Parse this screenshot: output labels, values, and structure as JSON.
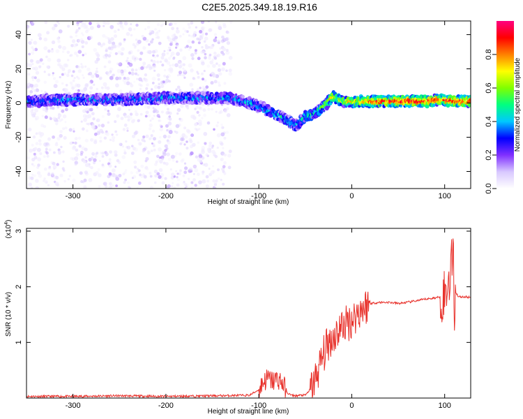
{
  "title": "C2E5.2025.349.18.19.R16",
  "chart_data": [
    {
      "type": "heatmap",
      "xlabel": "Height of straight line (km)",
      "ylabel": "Frequency (Hz)",
      "xlim": [
        -350,
        128
      ],
      "ylim": [
        -50,
        48
      ],
      "xticks": [
        -300,
        -200,
        -100,
        0,
        100
      ],
      "yticks": [
        -40,
        -20,
        0,
        20,
        40
      ],
      "grid": false,
      "colorbar": {
        "label": "Normalized spectral amplitude",
        "ticks": [
          "0.0",
          "0.2",
          "0.4",
          "0.6",
          "0.8"
        ],
        "tick_values": [
          0,
          0.2,
          0.4,
          0.6,
          0.8
        ],
        "range": [
          0,
          1
        ],
        "colormap": [
          "#ffffff",
          "#d8c8ff",
          "#8030ff",
          "#0000ff",
          "#00c8ff",
          "#00ff80",
          "#80ff00",
          "#ffff00",
          "#ff8000",
          "#ff0000",
          "#ff0080"
        ]
      },
      "ridge": [
        {
          "x": -350,
          "y": 1,
          "amp": 0.3
        },
        {
          "x": -300,
          "y": 2,
          "amp": 0.35
        },
        {
          "x": -250,
          "y": 2,
          "amp": 0.32
        },
        {
          "x": -200,
          "y": 3,
          "amp": 0.35
        },
        {
          "x": -160,
          "y": 3,
          "amp": 0.34
        },
        {
          "x": -130,
          "y": 3,
          "amp": 0.35
        },
        {
          "x": -110,
          "y": 0,
          "amp": 0.38
        },
        {
          "x": -95,
          "y": -3,
          "amp": 0.4
        },
        {
          "x": -80,
          "y": -7,
          "amp": 0.42
        },
        {
          "x": -70,
          "y": -10,
          "amp": 0.45
        },
        {
          "x": -60,
          "y": -13,
          "amp": 0.4
        },
        {
          "x": -50,
          "y": -8,
          "amp": 0.42
        },
        {
          "x": -40,
          "y": -6,
          "amp": 0.45
        },
        {
          "x": -30,
          "y": -2,
          "amp": 0.55
        },
        {
          "x": -20,
          "y": 4,
          "amp": 0.7
        },
        {
          "x": -10,
          "y": 1,
          "amp": 0.65
        },
        {
          "x": 0,
          "y": 1,
          "amp": 0.75
        },
        {
          "x": 20,
          "y": 1,
          "amp": 0.85
        },
        {
          "x": 40,
          "y": 1,
          "amp": 0.9
        },
        {
          "x": 60,
          "y": 1,
          "amp": 0.92
        },
        {
          "x": 80,
          "y": 1,
          "amp": 0.93
        },
        {
          "x": 95,
          "y": 2,
          "amp": 0.85
        },
        {
          "x": 110,
          "y": 1,
          "amp": 0.9
        },
        {
          "x": 128,
          "y": 1,
          "amp": 0.88
        }
      ],
      "noise_region": [
        -350,
        -130
      ]
    },
    {
      "type": "line",
      "xlabel": "Height of straight line (km)",
      "ylabel": "SNR (10 * v/v)",
      "y_multiplier_label": "(x10",
      "y_multiplier_exp": "4",
      "y_multiplier_close": ")",
      "xlim": [
        -350,
        128
      ],
      "ylim": [
        0,
        3.05
      ],
      "xticks": [
        -300,
        -200,
        -100,
        0,
        100
      ],
      "yticks": [
        1,
        2,
        3
      ],
      "color": "#e8302a",
      "series": [
        {
          "x": [
            -350,
            -300,
            -250,
            -200,
            -150,
            -110,
            -100,
            -95,
            -90,
            -85,
            -80,
            -75,
            -70,
            -65,
            -60,
            -55,
            -50,
            -45,
            -40,
            -35,
            -30,
            -25,
            -20,
            -15,
            -10,
            -5,
            0,
            5,
            10,
            20,
            30,
            40,
            50,
            60,
            70,
            80,
            90,
            95,
            100,
            103,
            106,
            108,
            109,
            110,
            112,
            115,
            120,
            128
          ],
          "y": [
            0.03,
            0.03,
            0.04,
            0.03,
            0.04,
            0.05,
            0.15,
            0.3,
            0.35,
            0.3,
            0.35,
            0.28,
            0.1,
            0.05,
            0.04,
            0.05,
            0.05,
            0.15,
            0.3,
            0.55,
            0.8,
            1.0,
            1.1,
            1.2,
            1.3,
            1.35,
            1.4,
            1.5,
            1.6,
            1.7,
            1.72,
            1.72,
            1.7,
            1.72,
            1.75,
            1.78,
            1.8,
            1.82,
            1.85,
            2.0,
            2.3,
            2.5,
            3.0,
            1.6,
            1.9,
            1.82,
            1.82,
            1.81
          ]
        }
      ]
    }
  ]
}
